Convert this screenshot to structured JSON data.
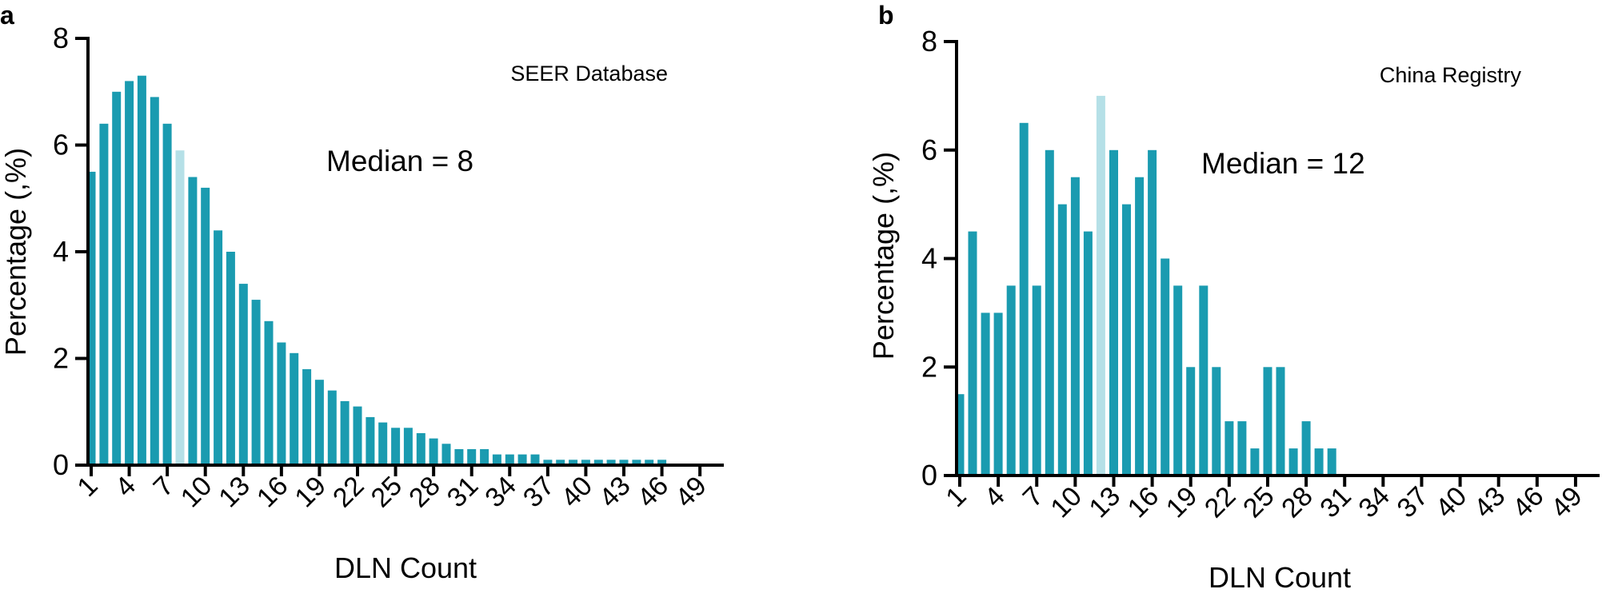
{
  "chart_data": [
    {
      "panel_label": "a",
      "type": "bar",
      "title": "SEER Database",
      "annotation": "Median = 8",
      "xlabel": "DLN Count",
      "ylabel": "Percentage (,%)",
      "ylim": [
        0,
        8
      ],
      "yticks": [
        0,
        2,
        4,
        6,
        8
      ],
      "xlim": [
        1,
        50
      ],
      "xticks": [
        1,
        4,
        7,
        10,
        13,
        16,
        19,
        22,
        25,
        28,
        31,
        34,
        37,
        40,
        43,
        46,
        49
      ],
      "highlight_x": 8,
      "x": [
        1,
        2,
        3,
        4,
        5,
        6,
        7,
        8,
        9,
        10,
        11,
        12,
        13,
        14,
        15,
        16,
        17,
        18,
        19,
        20,
        21,
        22,
        23,
        24,
        25,
        26,
        27,
        28,
        29,
        30,
        31,
        32,
        33,
        34,
        35,
        36,
        37,
        38,
        39,
        40,
        41,
        42,
        43,
        44,
        45,
        46
      ],
      "values": [
        5.5,
        6.4,
        7.0,
        7.2,
        7.3,
        6.9,
        6.4,
        5.9,
        5.4,
        5.2,
        4.4,
        4.0,
        3.4,
        3.1,
        2.7,
        2.3,
        2.1,
        1.8,
        1.6,
        1.4,
        1.2,
        1.1,
        0.9,
        0.8,
        0.7,
        0.7,
        0.6,
        0.5,
        0.4,
        0.3,
        0.3,
        0.3,
        0.2,
        0.2,
        0.2,
        0.2,
        0.1,
        0.1,
        0.1,
        0.1,
        0.1,
        0.1,
        0.1,
        0.1,
        0.1,
        0.1
      ]
    },
    {
      "panel_label": "b",
      "type": "bar",
      "title": "China Registry",
      "annotation": "Median = 12",
      "xlabel": "DLN Count",
      "ylabel": "Percentage (,%)",
      "ylim": [
        0,
        8
      ],
      "yticks": [
        0,
        2,
        4,
        6,
        8
      ],
      "xlim": [
        1,
        50
      ],
      "xticks": [
        1,
        4,
        7,
        10,
        13,
        16,
        19,
        22,
        25,
        28,
        31,
        34,
        37,
        40,
        43,
        46,
        49
      ],
      "highlight_x": 12,
      "x": [
        1,
        2,
        3,
        4,
        5,
        6,
        7,
        8,
        9,
        10,
        11,
        12,
        13,
        14,
        15,
        16,
        17,
        18,
        19,
        20,
        21,
        22,
        23,
        24,
        25,
        26,
        27,
        28,
        29,
        30
      ],
      "values": [
        1.5,
        4.5,
        3.0,
        3.0,
        3.5,
        6.5,
        3.5,
        6.0,
        5.0,
        5.5,
        4.5,
        7.0,
        6.0,
        5.0,
        5.5,
        6.0,
        4.0,
        3.5,
        2.0,
        3.5,
        2.0,
        1.0,
        1.0,
        0.5,
        2.0,
        2.0,
        0.5,
        1.0,
        0.5,
        0.5
      ]
    }
  ],
  "colors": {
    "bar": "#1a9bb0",
    "highlight": "#b5e0e7",
    "axis": "#000000"
  }
}
